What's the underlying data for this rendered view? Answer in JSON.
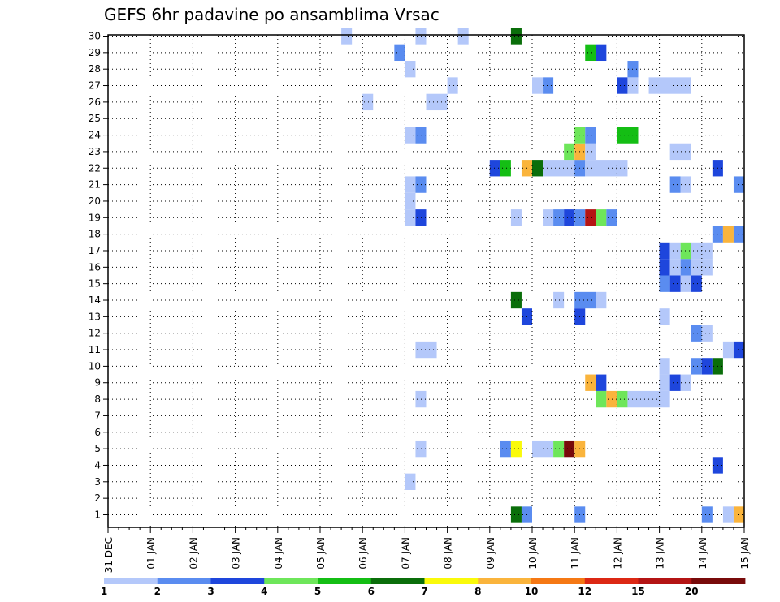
{
  "chart_data": {
    "type": "heatmap",
    "title": "GEFS 6hr padavine po ansamblima Vrsac",
    "x_tick_labels": [
      "31 DEC",
      "01 JAN",
      "02 JAN",
      "03 JAN",
      "04 JAN",
      "05 JAN",
      "06 JAN",
      "07 JAN",
      "08 JAN",
      "09 JAN",
      "10 JAN",
      "11 JAN",
      "12 JAN",
      "13 JAN",
      "14 JAN",
      "15 JAN"
    ],
    "x_range_days": [
      0,
      15
    ],
    "y_tick_labels": [
      "1",
      "2",
      "3",
      "4",
      "5",
      "6",
      "7",
      "8",
      "9",
      "10",
      "11",
      "12",
      "13",
      "14",
      "15",
      "16",
      "17",
      "18",
      "19",
      "20",
      "21",
      "22",
      "23",
      "24",
      "25",
      "26",
      "27",
      "28",
      "29",
      "30"
    ],
    "y_range": [
      1,
      30
    ],
    "grid": true,
    "colorbar": {
      "labels": [
        "1",
        "2",
        "3",
        "4",
        "5",
        "6",
        "7",
        "8",
        "10",
        "12",
        "15",
        "20"
      ],
      "colors": [
        "#b4c8fa",
        "#5a8cf0",
        "#1e46dc",
        "#6ee65a",
        "#14be14",
        "#0a6e0a",
        "#fafa0a",
        "#fab43c",
        "#f57814",
        "#dc2814",
        "#b41414",
        "#780a0a"
      ]
    },
    "cells_note": "each cell: [member, start_day, end_day, color_class]; day 0 = 31 DEC 00Z, 0.25 = 6 hours; class 0..11 indexes colorbar.colors",
    "cells": [
      [
        1,
        9.5,
        9.75,
        5
      ],
      [
        1,
        9.75,
        10.0,
        1
      ],
      [
        1,
        11.0,
        11.25,
        1
      ],
      [
        1,
        14.0,
        14.25,
        1
      ],
      [
        1,
        14.5,
        14.75,
        0
      ],
      [
        1,
        14.75,
        15.0,
        7
      ],
      [
        3,
        7.0,
        7.25,
        0
      ],
      [
        4,
        14.25,
        14.5,
        2
      ],
      [
        5,
        7.25,
        7.5,
        0
      ],
      [
        5,
        9.25,
        9.5,
        1
      ],
      [
        5,
        9.5,
        9.75,
        6
      ],
      [
        5,
        10.0,
        10.5,
        0
      ],
      [
        5,
        10.5,
        10.75,
        3
      ],
      [
        5,
        10.75,
        11.0,
        11
      ],
      [
        5,
        11.0,
        11.25,
        7
      ],
      [
        8,
        7.25,
        7.5,
        0
      ],
      [
        8,
        11.5,
        11.75,
        3
      ],
      [
        8,
        11.75,
        12.0,
        7
      ],
      [
        8,
        12.0,
        12.25,
        3
      ],
      [
        8,
        12.25,
        13.25,
        0
      ],
      [
        9,
        11.25,
        11.5,
        7
      ],
      [
        9,
        11.5,
        11.75,
        2
      ],
      [
        9,
        13.0,
        13.25,
        0
      ],
      [
        9,
        13.25,
        13.5,
        2
      ],
      [
        9,
        13.5,
        13.75,
        0
      ],
      [
        10,
        13.0,
        13.25,
        0
      ],
      [
        10,
        13.75,
        14.0,
        1
      ],
      [
        10,
        14.0,
        14.25,
        2
      ],
      [
        10,
        14.25,
        14.5,
        5
      ],
      [
        11,
        7.25,
        7.75,
        0
      ],
      [
        11,
        14.5,
        14.75,
        0
      ],
      [
        11,
        14.75,
        15.0,
        2
      ],
      [
        12,
        13.75,
        14.0,
        1
      ],
      [
        12,
        14.0,
        14.25,
        0
      ],
      [
        13,
        9.75,
        10.0,
        2
      ],
      [
        13,
        11.0,
        11.25,
        2
      ],
      [
        13,
        13.0,
        13.25,
        0
      ],
      [
        14,
        9.5,
        9.75,
        5
      ],
      [
        14,
        10.5,
        10.75,
        0
      ],
      [
        14,
        11.0,
        11.5,
        1
      ],
      [
        14,
        11.5,
        11.75,
        0
      ],
      [
        15,
        13.0,
        13.25,
        1
      ],
      [
        15,
        13.25,
        13.5,
        2
      ],
      [
        15,
        13.5,
        13.75,
        0
      ],
      [
        15,
        13.75,
        14.0,
        2
      ],
      [
        16,
        13.0,
        13.25,
        2
      ],
      [
        16,
        13.25,
        13.5,
        0
      ],
      [
        16,
        13.5,
        13.75,
        1
      ],
      [
        16,
        13.75,
        14.25,
        0
      ],
      [
        17,
        13.0,
        13.25,
        2
      ],
      [
        17,
        13.25,
        13.5,
        0
      ],
      [
        17,
        13.5,
        13.75,
        3
      ],
      [
        17,
        13.75,
        14.25,
        0
      ],
      [
        18,
        14.25,
        14.5,
        1
      ],
      [
        18,
        14.5,
        14.75,
        7
      ],
      [
        18,
        14.75,
        15.0,
        1
      ],
      [
        19,
        7.0,
        7.25,
        0
      ],
      [
        19,
        7.25,
        7.5,
        2
      ],
      [
        19,
        9.5,
        9.75,
        0
      ],
      [
        19,
        10.25,
        10.5,
        0
      ],
      [
        19,
        10.5,
        10.75,
        1
      ],
      [
        19,
        10.75,
        11.0,
        2
      ],
      [
        19,
        11.0,
        11.25,
        1
      ],
      [
        19,
        11.25,
        11.5,
        10
      ],
      [
        19,
        11.5,
        11.75,
        3
      ],
      [
        19,
        11.75,
        12.0,
        1
      ],
      [
        20,
        7.0,
        7.25,
        0
      ],
      [
        21,
        7.0,
        7.25,
        0
      ],
      [
        21,
        7.25,
        7.5,
        1
      ],
      [
        21,
        13.25,
        13.5,
        1
      ],
      [
        21,
        13.5,
        13.75,
        0
      ],
      [
        21,
        14.75,
        15.0,
        1
      ],
      [
        22,
        9.0,
        9.25,
        2
      ],
      [
        22,
        9.25,
        9.5,
        4
      ],
      [
        22,
        9.75,
        10.0,
        7
      ],
      [
        22,
        10.0,
        10.25,
        5
      ],
      [
        22,
        10.25,
        11.0,
        0
      ],
      [
        22,
        11.0,
        11.25,
        1
      ],
      [
        22,
        11.25,
        12.25,
        0
      ],
      [
        22,
        14.25,
        14.5,
        2
      ],
      [
        23,
        10.75,
        11.0,
        3
      ],
      [
        23,
        11.0,
        11.25,
        7
      ],
      [
        23,
        11.25,
        11.5,
        0
      ],
      [
        23,
        13.25,
        13.75,
        0
      ],
      [
        24,
        7.0,
        7.25,
        0
      ],
      [
        24,
        7.25,
        7.5,
        1
      ],
      [
        24,
        11.0,
        11.25,
        3
      ],
      [
        24,
        11.25,
        11.5,
        1
      ],
      [
        24,
        12.0,
        12.5,
        4
      ],
      [
        26,
        6.0,
        6.25,
        0
      ],
      [
        26,
        7.5,
        8.0,
        0
      ],
      [
        27,
        8.0,
        8.25,
        0
      ],
      [
        27,
        10.0,
        10.25,
        0
      ],
      [
        27,
        10.25,
        10.5,
        1
      ],
      [
        27,
        12.0,
        12.25,
        2
      ],
      [
        27,
        12.25,
        12.5,
        0
      ],
      [
        27,
        12.75,
        13.75,
        0
      ],
      [
        28,
        7.0,
        7.25,
        0
      ],
      [
        28,
        12.25,
        12.5,
        1
      ],
      [
        29,
        6.75,
        7.0,
        1
      ],
      [
        29,
        11.25,
        11.5,
        4
      ],
      [
        29,
        11.5,
        11.75,
        2
      ],
      [
        30,
        5.5,
        5.75,
        0
      ],
      [
        30,
        7.25,
        7.5,
        0
      ],
      [
        30,
        8.25,
        8.5,
        0
      ],
      [
        30,
        9.5,
        9.75,
        5
      ]
    ]
  }
}
